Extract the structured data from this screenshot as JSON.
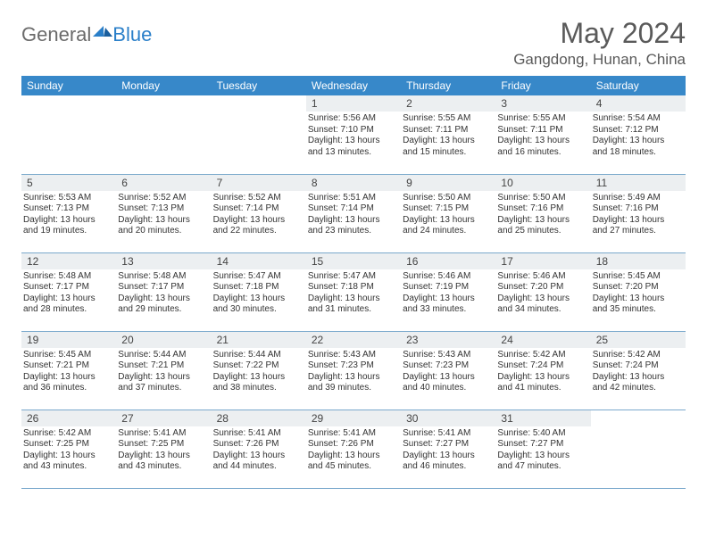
{
  "brand": {
    "part1": "General",
    "part2": "Blue"
  },
  "title": "May 2024",
  "location": "Gangdong, Hunan, China",
  "colors": {
    "header_bg": "#3788c9",
    "header_text": "#ffffff",
    "daynum_bg": "#eceff1",
    "row_border": "#7aa9cc",
    "title_color": "#5a5a5a",
    "logo_gray": "#6b6b6b",
    "logo_blue": "#2a7fc9"
  },
  "weekdays": [
    "Sunday",
    "Monday",
    "Tuesday",
    "Wednesday",
    "Thursday",
    "Friday",
    "Saturday"
  ],
  "weeks": [
    [
      {
        "n": "",
        "empty": true
      },
      {
        "n": "",
        "empty": true
      },
      {
        "n": "",
        "empty": true
      },
      {
        "n": "1",
        "sunrise": "Sunrise: 5:56 AM",
        "sunset": "Sunset: 7:10 PM",
        "d1": "Daylight: 13 hours",
        "d2": "and 13 minutes."
      },
      {
        "n": "2",
        "sunrise": "Sunrise: 5:55 AM",
        "sunset": "Sunset: 7:11 PM",
        "d1": "Daylight: 13 hours",
        "d2": "and 15 minutes."
      },
      {
        "n": "3",
        "sunrise": "Sunrise: 5:55 AM",
        "sunset": "Sunset: 7:11 PM",
        "d1": "Daylight: 13 hours",
        "d2": "and 16 minutes."
      },
      {
        "n": "4",
        "sunrise": "Sunrise: 5:54 AM",
        "sunset": "Sunset: 7:12 PM",
        "d1": "Daylight: 13 hours",
        "d2": "and 18 minutes."
      }
    ],
    [
      {
        "n": "5",
        "sunrise": "Sunrise: 5:53 AM",
        "sunset": "Sunset: 7:13 PM",
        "d1": "Daylight: 13 hours",
        "d2": "and 19 minutes."
      },
      {
        "n": "6",
        "sunrise": "Sunrise: 5:52 AM",
        "sunset": "Sunset: 7:13 PM",
        "d1": "Daylight: 13 hours",
        "d2": "and 20 minutes."
      },
      {
        "n": "7",
        "sunrise": "Sunrise: 5:52 AM",
        "sunset": "Sunset: 7:14 PM",
        "d1": "Daylight: 13 hours",
        "d2": "and 22 minutes."
      },
      {
        "n": "8",
        "sunrise": "Sunrise: 5:51 AM",
        "sunset": "Sunset: 7:14 PM",
        "d1": "Daylight: 13 hours",
        "d2": "and 23 minutes."
      },
      {
        "n": "9",
        "sunrise": "Sunrise: 5:50 AM",
        "sunset": "Sunset: 7:15 PM",
        "d1": "Daylight: 13 hours",
        "d2": "and 24 minutes."
      },
      {
        "n": "10",
        "sunrise": "Sunrise: 5:50 AM",
        "sunset": "Sunset: 7:16 PM",
        "d1": "Daylight: 13 hours",
        "d2": "and 25 minutes."
      },
      {
        "n": "11",
        "sunrise": "Sunrise: 5:49 AM",
        "sunset": "Sunset: 7:16 PM",
        "d1": "Daylight: 13 hours",
        "d2": "and 27 minutes."
      }
    ],
    [
      {
        "n": "12",
        "sunrise": "Sunrise: 5:48 AM",
        "sunset": "Sunset: 7:17 PM",
        "d1": "Daylight: 13 hours",
        "d2": "and 28 minutes."
      },
      {
        "n": "13",
        "sunrise": "Sunrise: 5:48 AM",
        "sunset": "Sunset: 7:17 PM",
        "d1": "Daylight: 13 hours",
        "d2": "and 29 minutes."
      },
      {
        "n": "14",
        "sunrise": "Sunrise: 5:47 AM",
        "sunset": "Sunset: 7:18 PM",
        "d1": "Daylight: 13 hours",
        "d2": "and 30 minutes."
      },
      {
        "n": "15",
        "sunrise": "Sunrise: 5:47 AM",
        "sunset": "Sunset: 7:18 PM",
        "d1": "Daylight: 13 hours",
        "d2": "and 31 minutes."
      },
      {
        "n": "16",
        "sunrise": "Sunrise: 5:46 AM",
        "sunset": "Sunset: 7:19 PM",
        "d1": "Daylight: 13 hours",
        "d2": "and 33 minutes."
      },
      {
        "n": "17",
        "sunrise": "Sunrise: 5:46 AM",
        "sunset": "Sunset: 7:20 PM",
        "d1": "Daylight: 13 hours",
        "d2": "and 34 minutes."
      },
      {
        "n": "18",
        "sunrise": "Sunrise: 5:45 AM",
        "sunset": "Sunset: 7:20 PM",
        "d1": "Daylight: 13 hours",
        "d2": "and 35 minutes."
      }
    ],
    [
      {
        "n": "19",
        "sunrise": "Sunrise: 5:45 AM",
        "sunset": "Sunset: 7:21 PM",
        "d1": "Daylight: 13 hours",
        "d2": "and 36 minutes."
      },
      {
        "n": "20",
        "sunrise": "Sunrise: 5:44 AM",
        "sunset": "Sunset: 7:21 PM",
        "d1": "Daylight: 13 hours",
        "d2": "and 37 minutes."
      },
      {
        "n": "21",
        "sunrise": "Sunrise: 5:44 AM",
        "sunset": "Sunset: 7:22 PM",
        "d1": "Daylight: 13 hours",
        "d2": "and 38 minutes."
      },
      {
        "n": "22",
        "sunrise": "Sunrise: 5:43 AM",
        "sunset": "Sunset: 7:23 PM",
        "d1": "Daylight: 13 hours",
        "d2": "and 39 minutes."
      },
      {
        "n": "23",
        "sunrise": "Sunrise: 5:43 AM",
        "sunset": "Sunset: 7:23 PM",
        "d1": "Daylight: 13 hours",
        "d2": "and 40 minutes."
      },
      {
        "n": "24",
        "sunrise": "Sunrise: 5:42 AM",
        "sunset": "Sunset: 7:24 PM",
        "d1": "Daylight: 13 hours",
        "d2": "and 41 minutes."
      },
      {
        "n": "25",
        "sunrise": "Sunrise: 5:42 AM",
        "sunset": "Sunset: 7:24 PM",
        "d1": "Daylight: 13 hours",
        "d2": "and 42 minutes."
      }
    ],
    [
      {
        "n": "26",
        "sunrise": "Sunrise: 5:42 AM",
        "sunset": "Sunset: 7:25 PM",
        "d1": "Daylight: 13 hours",
        "d2": "and 43 minutes."
      },
      {
        "n": "27",
        "sunrise": "Sunrise: 5:41 AM",
        "sunset": "Sunset: 7:25 PM",
        "d1": "Daylight: 13 hours",
        "d2": "and 43 minutes."
      },
      {
        "n": "28",
        "sunrise": "Sunrise: 5:41 AM",
        "sunset": "Sunset: 7:26 PM",
        "d1": "Daylight: 13 hours",
        "d2": "and 44 minutes."
      },
      {
        "n": "29",
        "sunrise": "Sunrise: 5:41 AM",
        "sunset": "Sunset: 7:26 PM",
        "d1": "Daylight: 13 hours",
        "d2": "and 45 minutes."
      },
      {
        "n": "30",
        "sunrise": "Sunrise: 5:41 AM",
        "sunset": "Sunset: 7:27 PM",
        "d1": "Daylight: 13 hours",
        "d2": "and 46 minutes."
      },
      {
        "n": "31",
        "sunrise": "Sunrise: 5:40 AM",
        "sunset": "Sunset: 7:27 PM",
        "d1": "Daylight: 13 hours",
        "d2": "and 47 minutes."
      },
      {
        "n": "",
        "empty": true
      }
    ]
  ]
}
